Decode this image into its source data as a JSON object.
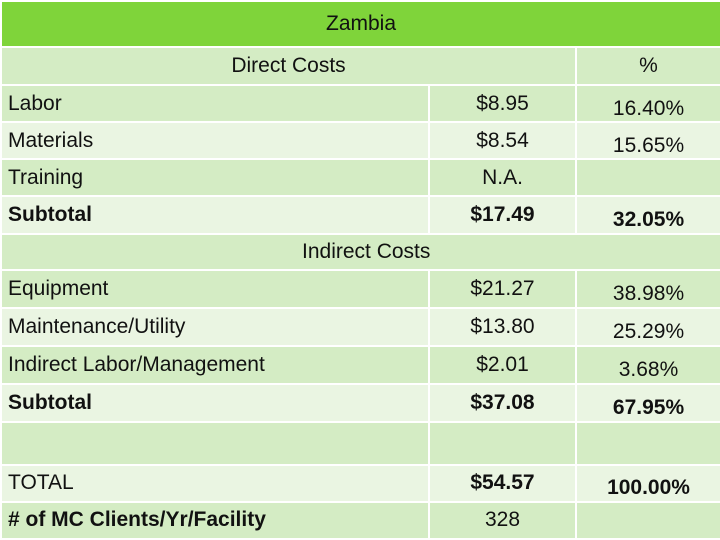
{
  "title": "Zambia",
  "direct_header": "Direct Costs",
  "percent_header": "%",
  "direct_rows": [
    {
      "label": "Labor",
      "cost": "$8.95",
      "percent": "16.40%"
    },
    {
      "label": "Materials",
      "cost": "$8.54",
      "percent": "15.65%"
    },
    {
      "label": "Training",
      "cost": "N.A.",
      "percent": ""
    }
  ],
  "direct_subtotal": {
    "label": "Subtotal",
    "cost": "$17.49",
    "percent": "32.05%"
  },
  "indirect_header": "Indirect Costs",
  "indirect_rows": [
    {
      "label": "Equipment",
      "cost": "$21.27",
      "percent": "38.98%"
    },
    {
      "label": "Maintenance/Utility",
      "cost": "$13.80",
      "percent": "25.29%"
    },
    {
      "label": "Indirect Labor/Management",
      "cost": "$2.01",
      "percent": "3.68%"
    }
  ],
  "indirect_subtotal": {
    "label": "Subtotal",
    "cost": "$37.08",
    "percent": "67.95%"
  },
  "total": {
    "label": "TOTAL",
    "cost": "$54.57",
    "percent": "100.00%"
  },
  "clients": {
    "label": "# of MC Clients/Yr/Facility",
    "cost": "328"
  }
}
